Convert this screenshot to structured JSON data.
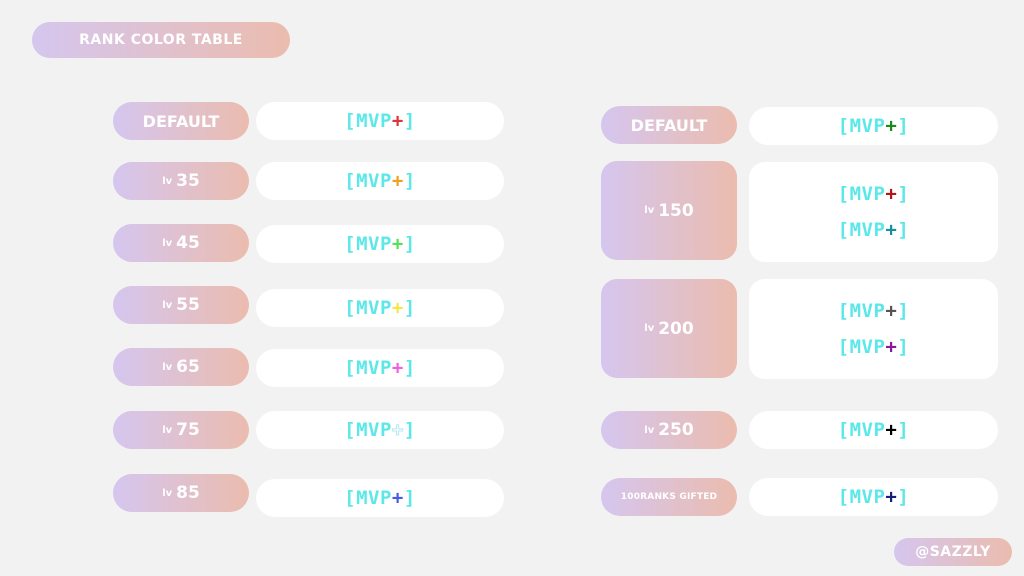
{
  "title": "RANK COLOR TABLE",
  "credit": "@SAZZLY",
  "left_column": [
    {
      "label": "DEFAULT",
      "lv": "",
      "num": "",
      "tags": [
        {
          "text": "[MVP",
          "plus": "+",
          "close": "]",
          "plus_color": "#e0343c"
        }
      ]
    },
    {
      "label": "",
      "lv": "lv",
      "num": "35",
      "tags": [
        {
          "text": "[MVP",
          "plus": "+",
          "close": "]",
          "plus_color": "#f0a020"
        }
      ]
    },
    {
      "label": "",
      "lv": "lv",
      "num": "45",
      "tags": [
        {
          "text": "[MVP",
          "plus": "+",
          "close": "]",
          "plus_color": "#55e055"
        }
      ]
    },
    {
      "label": "",
      "lv": "lv",
      "num": "55",
      "tags": [
        {
          "text": "[MVP",
          "plus": "+",
          "close": "]",
          "plus_color": "#f3e84a"
        }
      ]
    },
    {
      "label": "",
      "lv": "lv",
      "num": "65",
      "tags": [
        {
          "text": "[MVP",
          "plus": "+",
          "close": "]",
          "plus_color": "#f060e0"
        }
      ]
    },
    {
      "label": "",
      "lv": "lv",
      "num": "75",
      "tags": [
        {
          "text": "[MVP",
          "plus": "+",
          "close": "]",
          "plus_color": "#ffffff"
        }
      ]
    },
    {
      "label": "",
      "lv": "lv",
      "num": "85",
      "tags": [
        {
          "text": "[MVP",
          "plus": "+",
          "close": "]",
          "plus_color": "#4a5ae8"
        }
      ]
    }
  ],
  "right_column": [
    {
      "label": "DEFAULT",
      "lv": "",
      "num": "",
      "tags": [
        {
          "text": "[MVP",
          "plus": "+",
          "close": "]",
          "plus_color": "#1a8a1a"
        }
      ]
    },
    {
      "label": "",
      "lv": "lv",
      "num": "150",
      "tags": [
        {
          "text": "[MVP",
          "plus": "+",
          "close": "]",
          "plus_color": "#b01818"
        },
        {
          "text": "[MVP",
          "plus": "+",
          "close": "]",
          "plus_color": "#16909a"
        }
      ]
    },
    {
      "label": "",
      "lv": "lv",
      "num": "200",
      "tags": [
        {
          "text": "[MVP",
          "plus": "+",
          "close": "]",
          "plus_color": "#555555"
        },
        {
          "text": "[MVP",
          "plus": "+",
          "close": "]",
          "plus_color": "#8a1a9a"
        }
      ]
    },
    {
      "label": "",
      "lv": "lv",
      "num": "250",
      "tags": [
        {
          "text": "[MVP",
          "plus": "+",
          "close": "]",
          "plus_color": "#000000"
        }
      ]
    },
    {
      "label": "100RANKS GIFTED",
      "lv": "",
      "num": "",
      "tags": [
        {
          "text": "[MVP",
          "plus": "+",
          "close": "]",
          "plus_color": "#1a1a7a"
        }
      ]
    }
  ]
}
